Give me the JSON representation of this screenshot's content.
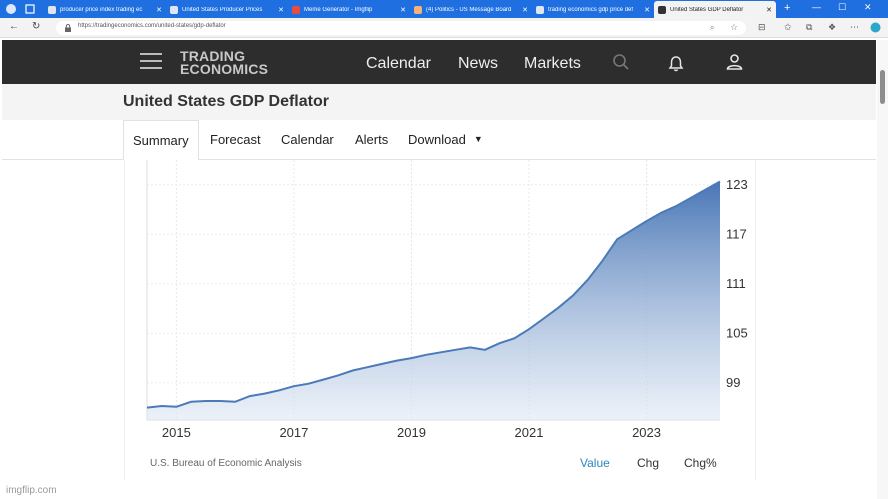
{
  "browser": {
    "tabs": [
      {
        "label": "producer price index trading ec",
        "favicon": "search-icon",
        "color": "#7fa6e0"
      },
      {
        "label": "United States Producer Prices",
        "favicon": "trading-economics-icon",
        "color": "#333333"
      },
      {
        "label": "Meme Generator - Imgflip",
        "favicon": "imgflip-icon",
        "color": "#c0392b"
      },
      {
        "label": "(4) Politics - US Message Board",
        "favicon": "flag-icon",
        "color": "#d35400"
      },
      {
        "label": "trading economics gdp price def",
        "favicon": "search-icon",
        "color": "#7fa6e0"
      },
      {
        "label": "United States GDP Deflator",
        "favicon": "trading-economics-icon",
        "color": "#333333",
        "active": true
      }
    ],
    "url": "https://tradingeconomics.com/united-states/gdp-deflator"
  },
  "header": {
    "logo_line1": "TRADING",
    "logo_line2": "ECONOMICS",
    "nav": [
      "Calendar",
      "News",
      "Markets"
    ]
  },
  "page": {
    "title": "United States GDP Deflator"
  },
  "subnav": {
    "tabs": [
      "Summary",
      "Forecast",
      "Calendar",
      "Alerts",
      "Download"
    ],
    "active": "Summary"
  },
  "chart_data": {
    "type": "area",
    "xlabel": "",
    "ylabel": "",
    "x_ticks": [
      "2015",
      "2017",
      "2019",
      "2021",
      "2023"
    ],
    "y_ticks": [
      99,
      105,
      111,
      117,
      123
    ],
    "ylim": [
      94.5,
      126
    ],
    "xlim": [
      2014.5,
      2024.25
    ],
    "grid": true,
    "line_color": "#4a7ab9",
    "x": [
      2014.5,
      2014.75,
      2015.0,
      2015.25,
      2015.5,
      2015.75,
      2016.0,
      2016.25,
      2016.5,
      2016.75,
      2017.0,
      2017.25,
      2017.5,
      2017.75,
      2018.0,
      2018.25,
      2018.5,
      2018.75,
      2019.0,
      2019.25,
      2019.5,
      2019.75,
      2020.0,
      2020.25,
      2020.5,
      2020.75,
      2021.0,
      2021.25,
      2021.5,
      2021.75,
      2022.0,
      2022.25,
      2022.5,
      2022.75,
      2023.0,
      2023.25,
      2023.5,
      2023.75,
      2024.0,
      2024.25
    ],
    "values": [
      96.0,
      96.2,
      96.1,
      96.7,
      96.8,
      96.8,
      96.7,
      97.4,
      97.7,
      98.1,
      98.6,
      98.9,
      99.4,
      99.9,
      100.5,
      100.9,
      101.3,
      101.7,
      102.0,
      102.4,
      102.7,
      103.0,
      103.3,
      103.0,
      103.8,
      104.4,
      105.5,
      106.8,
      108.1,
      109.6,
      111.5,
      113.8,
      116.4,
      117.5,
      118.6,
      119.6,
      120.4,
      121.4,
      122.4,
      123.4
    ],
    "source": "U.S. Bureau of Economic Analysis",
    "toggles": [
      "Value",
      "Chg",
      "Chg%"
    ],
    "active_toggle": "Value"
  },
  "watermark": "imgflip.com"
}
